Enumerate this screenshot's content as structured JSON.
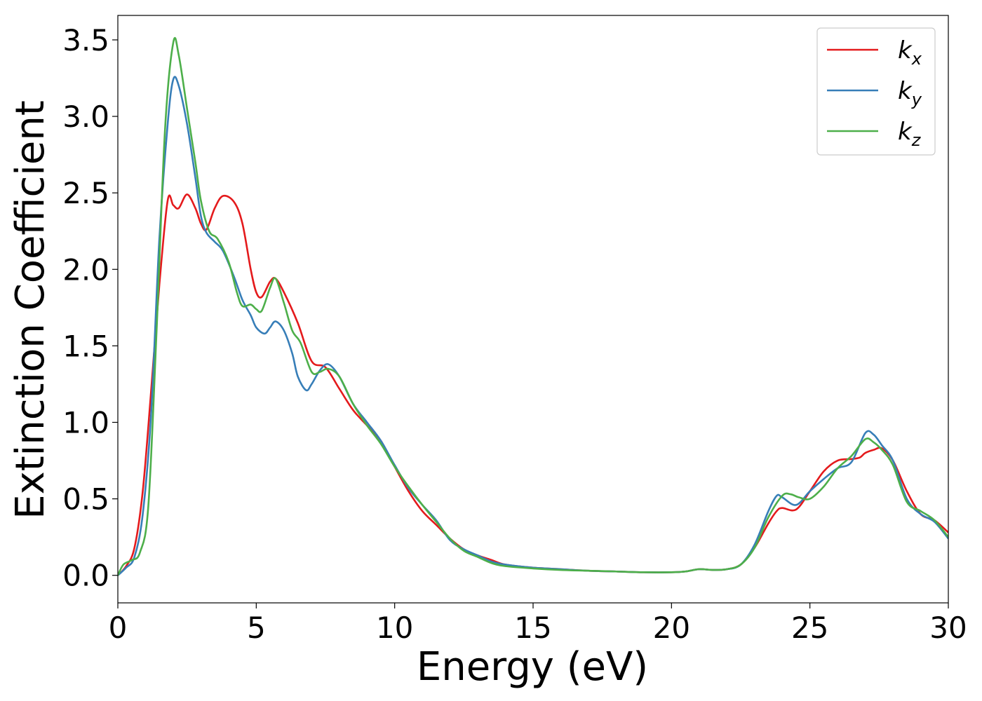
{
  "chart_data": {
    "type": "line",
    "title": "",
    "xlabel": "Energy (eV)",
    "ylabel": "Extinction Coefficient",
    "xlim": [
      0,
      30
    ],
    "ylim": [
      -0.18,
      3.66
    ],
    "xticks": [
      "0",
      "5",
      "10",
      "15",
      "20",
      "25",
      "30"
    ],
    "xtick_values": [
      0,
      5,
      10,
      15,
      20,
      25,
      30
    ],
    "yticks": [
      "0.0",
      "0.5",
      "1.0",
      "1.5",
      "2.0",
      "2.5",
      "3.0",
      "3.5"
    ],
    "ytick_values": [
      0.0,
      0.5,
      1.0,
      1.5,
      2.0,
      2.5,
      3.0,
      3.5
    ],
    "grid": false,
    "legend_position": "top-right",
    "series": [
      {
        "name": "k_x",
        "label_main": "k",
        "label_sub": "x",
        "color": "#e41a1c",
        "x": [
          0,
          0.3,
          0.6,
          0.9,
          1.2,
          1.5,
          1.8,
          2.0,
          2.2,
          2.5,
          2.8,
          3.0,
          3.2,
          3.5,
          3.8,
          4.2,
          4.5,
          4.8,
          5.0,
          5.2,
          5.5,
          5.7,
          6.0,
          6.5,
          7.0,
          7.5,
          8.0,
          8.5,
          9.0,
          9.5,
          10.0,
          10.5,
          11.0,
          11.5,
          12.0,
          12.5,
          13.0,
          13.5,
          14.0,
          15.0,
          16.0,
          17.0,
          18.0,
          19.0,
          20.0,
          20.5,
          21.0,
          21.5,
          22.0,
          22.5,
          23.0,
          23.5,
          23.8,
          24.0,
          24.5,
          25.0,
          25.5,
          26.0,
          26.5,
          26.8,
          27.0,
          27.3,
          27.6,
          28.0,
          28.5,
          29.0,
          29.5,
          30.0
        ],
        "y": [
          0.0,
          0.06,
          0.18,
          0.55,
          1.2,
          1.9,
          2.45,
          2.42,
          2.4,
          2.49,
          2.4,
          2.3,
          2.26,
          2.4,
          2.48,
          2.44,
          2.3,
          2.0,
          1.85,
          1.82,
          1.92,
          1.94,
          1.85,
          1.65,
          1.4,
          1.36,
          1.22,
          1.08,
          0.98,
          0.88,
          0.71,
          0.55,
          0.42,
          0.33,
          0.24,
          0.17,
          0.13,
          0.1,
          0.07,
          0.05,
          0.04,
          0.03,
          0.025,
          0.02,
          0.02,
          0.025,
          0.04,
          0.035,
          0.04,
          0.07,
          0.18,
          0.34,
          0.42,
          0.44,
          0.43,
          0.55,
          0.68,
          0.75,
          0.76,
          0.77,
          0.8,
          0.82,
          0.83,
          0.75,
          0.55,
          0.4,
          0.36,
          0.28
        ]
      },
      {
        "name": "k_y",
        "label_main": "k",
        "label_sub": "y",
        "color": "#377eb8",
        "x": [
          0,
          0.3,
          0.6,
          0.9,
          1.2,
          1.5,
          1.8,
          2.0,
          2.2,
          2.5,
          2.8,
          3.0,
          3.2,
          3.5,
          3.8,
          4.2,
          4.5,
          4.8,
          5.0,
          5.3,
          5.5,
          5.7,
          6.0,
          6.3,
          6.5,
          6.8,
          7.0,
          7.3,
          7.6,
          8.0,
          8.5,
          9.0,
          9.5,
          10.0,
          10.5,
          11.0,
          11.5,
          12.0,
          12.5,
          13.0,
          13.5,
          14.0,
          15.0,
          16.0,
          17.0,
          18.0,
          19.0,
          20.0,
          20.5,
          21.0,
          21.5,
          22.0,
          22.5,
          23.0,
          23.5,
          23.8,
          24.0,
          24.5,
          25.0,
          25.5,
          26.0,
          26.5,
          27.0,
          27.3,
          27.6,
          28.0,
          28.5,
          29.0,
          29.5,
          30.0
        ],
        "y": [
          0.0,
          0.05,
          0.12,
          0.4,
          1.05,
          2.2,
          2.95,
          3.24,
          3.2,
          2.95,
          2.6,
          2.35,
          2.24,
          2.18,
          2.12,
          1.95,
          1.8,
          1.7,
          1.62,
          1.58,
          1.62,
          1.66,
          1.6,
          1.45,
          1.3,
          1.21,
          1.25,
          1.34,
          1.38,
          1.3,
          1.12,
          1.0,
          0.88,
          0.72,
          0.57,
          0.46,
          0.36,
          0.23,
          0.17,
          0.13,
          0.09,
          0.07,
          0.05,
          0.04,
          0.03,
          0.025,
          0.02,
          0.02,
          0.025,
          0.04,
          0.035,
          0.04,
          0.07,
          0.2,
          0.42,
          0.52,
          0.51,
          0.46,
          0.55,
          0.63,
          0.7,
          0.74,
          0.93,
          0.92,
          0.85,
          0.75,
          0.5,
          0.4,
          0.35,
          0.24
        ]
      },
      {
        "name": "k_z",
        "label_main": "k",
        "label_sub": "z",
        "color": "#4daf4a",
        "x": [
          0,
          0.2,
          0.5,
          0.8,
          1.1,
          1.4,
          1.7,
          2.0,
          2.2,
          2.5,
          2.8,
          3.0,
          3.3,
          3.6,
          4.0,
          4.3,
          4.5,
          4.8,
          5.0,
          5.2,
          5.5,
          5.7,
          6.0,
          6.3,
          6.6,
          7.0,
          7.3,
          7.6,
          8.0,
          8.5,
          9.0,
          9.5,
          10.0,
          10.5,
          11.0,
          11.5,
          12.0,
          12.5,
          13.0,
          13.5,
          14.0,
          15.0,
          16.0,
          17.0,
          18.0,
          19.0,
          20.0,
          20.5,
          21.0,
          21.5,
          22.0,
          22.5,
          23.0,
          23.5,
          24.0,
          24.3,
          24.6,
          25.0,
          25.5,
          26.0,
          26.5,
          27.0,
          27.3,
          27.6,
          28.0,
          28.5,
          29.0,
          29.5,
          30.0
        ],
        "y": [
          0.0,
          0.07,
          0.1,
          0.15,
          0.45,
          1.6,
          2.9,
          3.48,
          3.4,
          3.05,
          2.7,
          2.45,
          2.25,
          2.2,
          2.05,
          1.85,
          1.76,
          1.77,
          1.74,
          1.73,
          1.88,
          1.94,
          1.78,
          1.6,
          1.52,
          1.33,
          1.33,
          1.35,
          1.3,
          1.12,
          0.98,
          0.86,
          0.71,
          0.58,
          0.46,
          0.35,
          0.24,
          0.16,
          0.12,
          0.08,
          0.06,
          0.045,
          0.035,
          0.03,
          0.025,
          0.02,
          0.02,
          0.025,
          0.04,
          0.035,
          0.04,
          0.07,
          0.18,
          0.38,
          0.52,
          0.53,
          0.51,
          0.5,
          0.58,
          0.7,
          0.78,
          0.89,
          0.87,
          0.82,
          0.72,
          0.48,
          0.42,
          0.36,
          0.25
        ]
      }
    ]
  }
}
